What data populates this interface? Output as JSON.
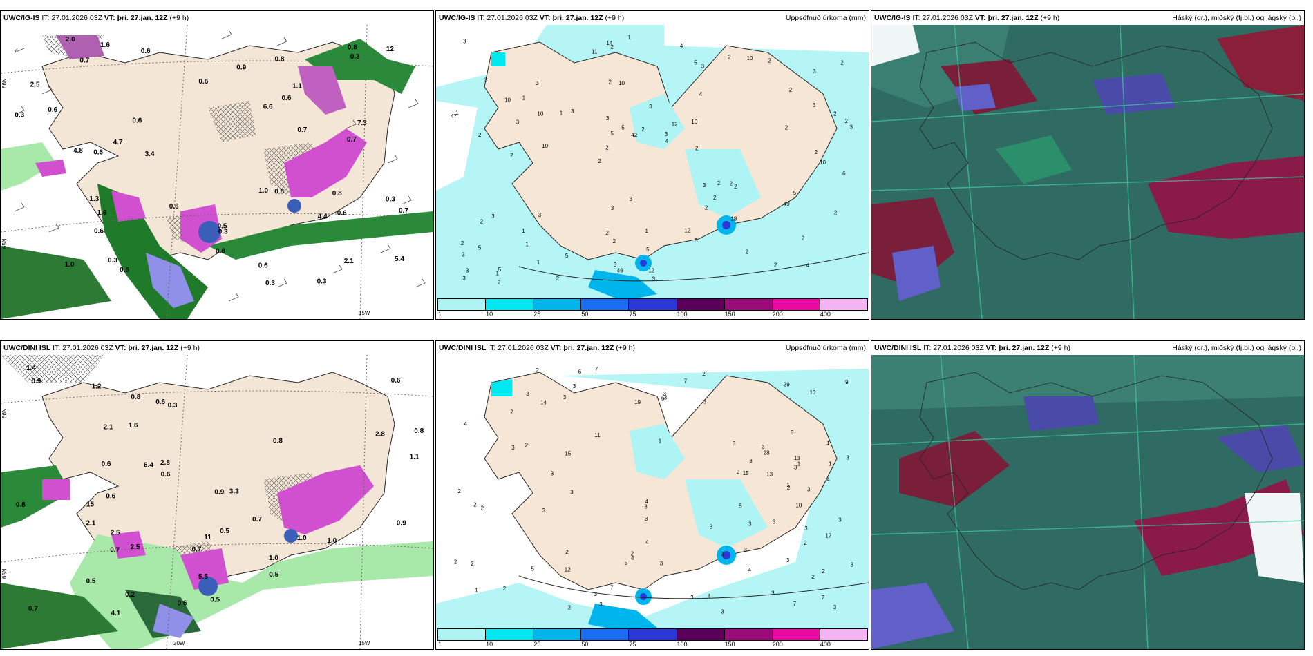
{
  "panels": [
    {
      "model": "UWC/IG-IS",
      "it_label": "IT:",
      "it": "27.01.2026 03Z",
      "vt_label": "VT:",
      "vt": "þri. 27.jan. 12Z",
      "lead": "(+9 h)",
      "title": ""
    },
    {
      "model": "UWC/IG-IS",
      "it_label": "IT:",
      "it": "27.01.2026 03Z",
      "vt_label": "VT:",
      "vt": "þri. 27.jan. 12Z",
      "lead": "(+9 h)",
      "title": "Uppsöfnuð úrkoma (mm)"
    },
    {
      "model": "UWC/IG-IS",
      "it_label": "IT:",
      "it": "27.01.2026 03Z",
      "vt_label": "VT:",
      "vt": "þri. 27.jan. 12Z",
      "lead": "(+9 h)",
      "title": "Háský (gr.), miðský (fj.bl.) og lágský (bl.)"
    },
    {
      "model": "UWC/DINI ISL",
      "it_label": "IT:",
      "it": "27.01.2026 03Z",
      "vt_label": "VT:",
      "vt": "þri. 27.jan. 12Z",
      "lead": "(+9 h)",
      "title": ""
    },
    {
      "model": "UWC/DINI ISL",
      "it_label": "IT:",
      "it": "27.01.2026 03Z",
      "vt_label": "VT:",
      "vt": "þri. 27.jan. 12Z",
      "lead": "(+9 h)",
      "title": "Uppsöfnuð úrkoma (mm)"
    },
    {
      "model": "UWC/DINI ISL",
      "it_label": "IT:",
      "it": "27.01.2026 03Z",
      "vt_label": "VT:",
      "vt": "þri. 27.jan. 12Z",
      "lead": "(+9 h)",
      "title": "Háský (gr.), miðský (fj.bl.) og lágský (bl.)"
    }
  ],
  "precip_colorbar": {
    "ticks": [
      "1",
      "10",
      "25",
      "50",
      "75",
      "100",
      "150",
      "200",
      "400"
    ],
    "colors": [
      "#aef4f4",
      "#00e8f0",
      "#00b4ec",
      "#1a6cf0",
      "#2a38d8",
      "#5a005a",
      "#9a0a78",
      "#e80aa0",
      "#f4b4f4"
    ]
  },
  "grid_labels": {
    "p1_lat_top": "66N",
    "p1_lat_bot": "65N",
    "p1_lon": "15W",
    "p4_lat_top": "66N",
    "p4_lat_bot": "65N",
    "p4_lon_a": "20W",
    "p4_lon_b": "15W"
  },
  "accum_labels_top": [
    "4",
    "2",
    "3",
    "2",
    "4",
    "5",
    "2",
    "3",
    "3",
    "3",
    "3",
    "1",
    "10",
    "12",
    "2",
    "3",
    "2",
    "3",
    "3",
    "3",
    "2",
    "2",
    "5",
    "3",
    "2",
    "3",
    "2",
    "2",
    "2",
    "3",
    "1",
    "3",
    "2",
    "1",
    "2",
    "3",
    "3",
    "2",
    "4",
    "2",
    "2",
    "2",
    "2",
    "5",
    "1",
    "2",
    "3",
    "1",
    "2",
    "1",
    "10",
    "1",
    "1",
    "10",
    "1",
    "4",
    "11",
    "5",
    "2",
    "3",
    "5",
    "2",
    "10",
    "2",
    "3",
    "10",
    "6",
    "3",
    "5",
    "2",
    "5",
    "2",
    "5",
    "3",
    "2",
    "3",
    "2",
    "12",
    "12",
    "14",
    "10",
    "10",
    "18",
    "42",
    "49",
    "47",
    "46",
    "5",
    "3",
    "2",
    "2",
    "2",
    "2"
  ],
  "accum_labels_bot": [
    "3",
    "1",
    "2",
    "1",
    "1",
    "3",
    "13",
    "12",
    "13",
    "2",
    "1",
    "4",
    "1",
    "3",
    "2",
    "2",
    "2",
    "3",
    "4",
    "1",
    "2",
    "2",
    "3",
    "2",
    "3",
    "5",
    "7",
    "3",
    "3",
    "3",
    "3",
    "4",
    "2",
    "3",
    "3",
    "3",
    "15",
    "19",
    "7",
    "3",
    "3",
    "13",
    "9",
    "3",
    "17",
    "3",
    "2",
    "2",
    "15",
    "28",
    "5",
    "3",
    "3",
    "3",
    "3",
    "5",
    "6",
    "3",
    "3",
    "3",
    "7",
    "3",
    "3",
    "3",
    "14",
    "7",
    "2",
    "4",
    "3",
    "3",
    "5",
    "2",
    "2",
    "3",
    "2",
    "3",
    "2",
    "4",
    "10",
    "2",
    "4",
    "3",
    "9",
    "3",
    "7",
    "3",
    "2",
    "4",
    "39",
    "11"
  ],
  "wind_labels_top": [
    "0.3",
    "0.3",
    "0.3",
    "1.0",
    "0.5",
    "0.6",
    "0.6",
    "1.1",
    "0.3",
    "0.7",
    "0.8",
    "0.3",
    "0.3",
    "0.7",
    "0.6",
    "0.7",
    "0.6",
    "0.3",
    "0.8",
    "0.6",
    "0.6",
    "0.8",
    "2.1",
    "4.8",
    "12",
    "6.6",
    "4.4",
    "0.6",
    "1.3",
    "4.7",
    "0.8",
    "7.3",
    "5.4",
    "0.6",
    "0.7",
    "0.6",
    "2.5",
    "0.8",
    "3.4",
    "2.0",
    "0.6",
    "0.6",
    "1.6",
    "1.6",
    "0.9",
    "1.0"
  ],
  "wind_labels_bot": [
    "0.9",
    "1.4",
    "0.8",
    "0.6",
    "0.8",
    "1.0",
    "0.3",
    "2.5",
    "0.7",
    "1.0",
    "0.7",
    "3.3",
    "4.1",
    "2.1",
    "11",
    "6.4",
    "0.7",
    "0.5",
    "1.6",
    "2.8",
    "1.1",
    "5.5",
    "0.2",
    "0.6",
    "15",
    "0.5",
    "2.5",
    "1.0",
    "0.6",
    "0.6",
    "0.7",
    "0.8",
    "2.8",
    "0.9",
    "0.9",
    "0.6",
    "1.2",
    "0.6",
    "0.5",
    "0.8",
    "2.1",
    "0.5"
  ]
}
